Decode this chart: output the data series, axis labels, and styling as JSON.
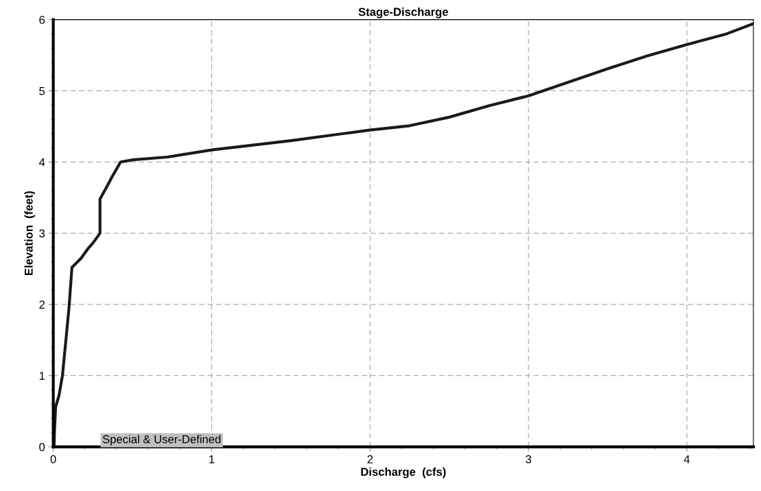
{
  "chart_data": {
    "type": "line",
    "title": "Stage-Discharge",
    "xlabel": "Discharge  (cfs)",
    "ylabel": "Elevation  (feet)",
    "x": [
      0.005,
      0.008,
      0.015,
      0.036,
      0.058,
      0.085,
      0.1,
      0.106,
      0.118,
      0.176,
      0.218,
      0.253,
      0.295,
      0.295,
      0.33,
      0.373,
      0.425,
      0.5,
      0.72,
      1.0,
      1.5,
      2.0,
      2.25,
      2.5,
      2.75,
      3.0,
      3.25,
      3.5,
      3.75,
      4.0,
      4.25,
      4.416
    ],
    "series": [
      {
        "color": "#1a1a1a",
        "values": [
          0,
          0.24,
          0.56,
          0.72,
          1.0,
          1.62,
          1.97,
          2.16,
          2.52,
          2.65,
          2.78,
          2.87,
          3.0,
          3.48,
          3.62,
          3.8,
          4.0,
          4.03,
          4.07,
          4.17,
          4.3,
          4.45,
          4.51,
          4.63,
          4.79,
          4.93,
          5.12,
          5.31,
          5.49,
          5.65,
          5.8,
          5.94
        ]
      }
    ],
    "xlim": [
      0,
      4.42
    ],
    "ylim": [
      0,
      6
    ],
    "xticks": [
      0,
      1,
      2,
      3,
      4
    ],
    "yticks": [
      0,
      1,
      2,
      3,
      4,
      5,
      6
    ],
    "grid": true,
    "line_style": "solid",
    "marker": "none",
    "annotations": [
      "Special & User-Defined"
    ]
  }
}
